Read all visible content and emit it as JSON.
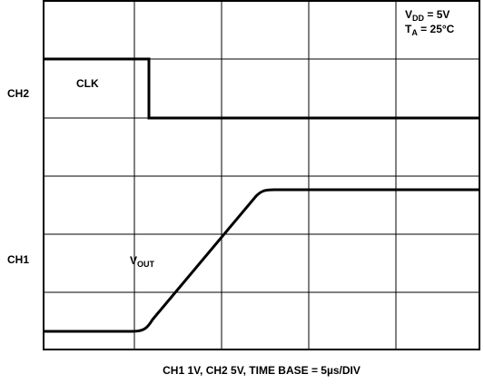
{
  "channels": {
    "ch2": "CH2",
    "ch1": "CH1"
  },
  "signals": {
    "clk": "CLK",
    "vout": {
      "main": "V",
      "sub": "OUT"
    }
  },
  "conditions": [
    {
      "main": "V",
      "sub": "DD",
      "rest": " = 5V"
    },
    {
      "main": "T",
      "sub": "A",
      "rest": " = 25°C"
    }
  ],
  "caption": "CH1 1V, CH2 5V, TIME BASE = 5µs/DIV"
}
